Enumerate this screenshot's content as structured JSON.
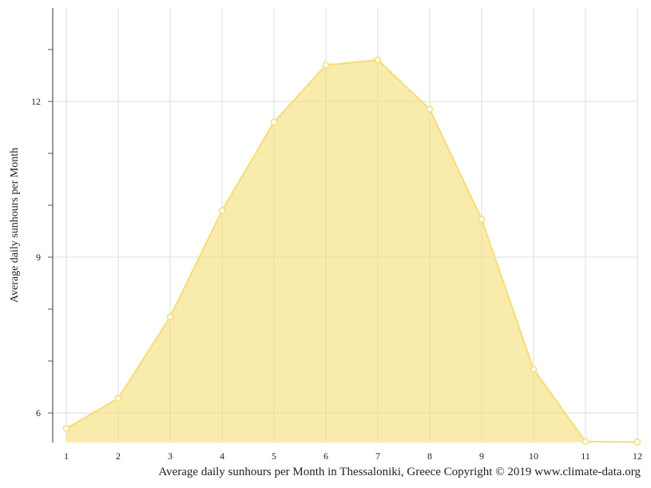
{
  "chart_data": {
    "type": "area",
    "title": "",
    "xlabel": "Average daily sunhours per Month in Thessaloniki, Greece Copyright © 2019 www.climate-data.org",
    "ylabel": "Average daily sunhours per Month",
    "x": [
      1,
      2,
      3,
      4,
      5,
      6,
      7,
      8,
      9,
      10,
      11,
      12
    ],
    "series": [
      {
        "values": [
          5.7,
          6.28,
          7.85,
          9.9,
          11.6,
          12.7,
          12.8,
          11.85,
          9.73,
          6.84,
          5.45,
          5.44
        ],
        "color": "#f5dd75"
      }
    ],
    "yticks": [
      6,
      9,
      12
    ],
    "ylim": [
      5.45,
      13.8
    ],
    "xlim": [
      1,
      12
    ],
    "grid": true
  }
}
